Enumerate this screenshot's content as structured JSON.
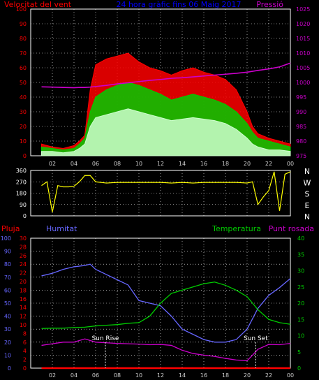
{
  "colors": {
    "background": "#000000",
    "wind": "#ff0000",
    "gust": "#00cc00",
    "wind_avg": "#ccffcc",
    "pressure": "#cc00cc",
    "direction": "#ffff00",
    "rain": "#ff0000",
    "humidity": "#6666ff",
    "temperature": "#00cc00",
    "dewpoint": "#cc00cc",
    "grid": "#ffffff",
    "sun_marker": "#ffffff"
  },
  "chart_data": [
    {
      "id": "wind",
      "type": "line",
      "title": "24 hora gràfic fins 06 Maig 2017",
      "left_axis_label": "Velocitat del vent",
      "right_axis_label": "Pressió",
      "x_ticks": [
        "02",
        "04",
        "06",
        "08",
        "10",
        "12",
        "14",
        "16",
        "18",
        "20",
        "22",
        "00"
      ],
      "y_left_ticks": [
        "0",
        "10",
        "20",
        "30",
        "40",
        "50",
        "60",
        "70",
        "80",
        "90",
        "100"
      ],
      "y_left_range": [
        0,
        100
      ],
      "y_right_ticks": [
        "975",
        "980",
        "985",
        "990",
        "995",
        "1000",
        "1005",
        "1010",
        "1015",
        "1020",
        "1025"
      ],
      "y_right_range": [
        975,
        1025
      ],
      "grid": true,
      "x": [
        1,
        2,
        3,
        4,
        4.5,
        5,
        5.5,
        6,
        7,
        8,
        9,
        10,
        11,
        12,
        13,
        14,
        15,
        16,
        17,
        18,
        19,
        20,
        20.5,
        21,
        22,
        23,
        24
      ],
      "series": [
        {
          "key": "wind",
          "color": "wind",
          "values": [
            8,
            6,
            5,
            7,
            10,
            14,
            45,
            62,
            66,
            68,
            70,
            64,
            60,
            58,
            55,
            58,
            60,
            57,
            55,
            52,
            45,
            30,
            20,
            15,
            12,
            10,
            8
          ]
        },
        {
          "key": "gust",
          "color": "gust",
          "values": [
            6,
            5,
            4,
            5,
            8,
            12,
            30,
            40,
            45,
            48,
            50,
            48,
            45,
            42,
            38,
            40,
            42,
            40,
            38,
            35,
            30,
            22,
            16,
            12,
            10,
            8,
            6
          ]
        },
        {
          "key": "wind_avg",
          "color": "wind_avg",
          "values": [
            3,
            3,
            2,
            3,
            5,
            8,
            20,
            26,
            28,
            30,
            32,
            30,
            28,
            26,
            24,
            25,
            26,
            25,
            24,
            22,
            18,
            12,
            8,
            6,
            4,
            4,
            3
          ]
        },
        {
          "key": "pressure",
          "axis": "right",
          "color": "pressure",
          "values": [
            998.5,
            998.4,
            998.3,
            998.2,
            998.3,
            998.3,
            998.4,
            998.6,
            999.0,
            999.5,
            999.9,
            1000.3,
            1000.7,
            1001.0,
            1001.4,
            1001.6,
            1001.9,
            1002.2,
            1002.5,
            1002.8,
            1003.1,
            1003.5,
            1003.8,
            1004.1,
            1004.6,
            1005.3,
            1006.6
          ]
        }
      ]
    },
    {
      "id": "direction",
      "type": "line",
      "y_left_ticks": [
        "0",
        "90",
        "180",
        "270",
        "360"
      ],
      "y_left_range": [
        0,
        360
      ],
      "compass": [
        "N",
        "W",
        "S",
        "E",
        "N"
      ],
      "grid": true,
      "x": [
        1,
        1.5,
        2,
        2.5,
        3,
        3.5,
        4,
        4.5,
        5,
        5.5,
        6,
        7,
        8,
        9,
        10,
        11,
        12,
        13,
        14,
        15,
        16,
        17,
        18,
        19,
        20,
        20.5,
        21,
        21.5,
        22,
        22.5,
        23,
        23.5,
        24
      ],
      "series": [
        {
          "key": "direction",
          "color": "direction",
          "values": [
            240,
            270,
            30,
            240,
            230,
            230,
            235,
            270,
            320,
            320,
            270,
            260,
            265,
            265,
            265,
            265,
            265,
            260,
            265,
            260,
            265,
            265,
            265,
            265,
            260,
            270,
            90,
            150,
            200,
            350,
            40,
            330,
            350
          ]
        }
      ]
    },
    {
      "id": "climate",
      "type": "line",
      "left_axis_label_1": "Pluja",
      "left_axis_label_2": "Humitat",
      "right_axis_label_1": "Temperatura",
      "right_axis_label_2": "Punt rosada",
      "x_ticks": [
        "02",
        "04",
        "06",
        "08",
        "10",
        "12",
        "14",
        "16",
        "18",
        "20",
        "22",
        "00"
      ],
      "y_humidity_ticks": [
        "0",
        "10",
        "20",
        "30",
        "40",
        "50",
        "60",
        "70",
        "80",
        "90",
        "100"
      ],
      "y_humidity_range": [
        0,
        100
      ],
      "y_rain_ticks": [
        "0",
        "2",
        "4",
        "6",
        "8",
        "10",
        "12",
        "14",
        "16",
        "18",
        "20",
        "22",
        "24",
        "26",
        "28",
        "30"
      ],
      "y_rain_range": [
        0,
        30
      ],
      "y_temp_ticks": [
        "0",
        "5",
        "10",
        "15",
        "20",
        "25",
        "30",
        "35",
        "40"
      ],
      "y_temp_range": [
        0,
        40
      ],
      "grid": true,
      "sun_rise_label": "Sun Rise",
      "sun_set_label": "Sun Set",
      "sun_rise_x": 6.9,
      "sun_set_x": 20.8,
      "x": [
        1,
        2,
        3,
        4,
        5,
        5.5,
        6,
        7,
        8,
        9,
        10,
        11,
        12,
        13,
        14,
        15,
        16,
        17,
        18,
        19,
        20,
        20.5,
        21,
        22,
        23,
        24
      ],
      "series": [
        {
          "key": "humidity",
          "axis": "humidity",
          "color": "humidity",
          "values": [
            71,
            73,
            76,
            78,
            79,
            80,
            76,
            72,
            68,
            64,
            52,
            50,
            48,
            40,
            30,
            26,
            22,
            20,
            20,
            22,
            30,
            38,
            46,
            56,
            62,
            69
          ]
        },
        {
          "key": "temperature",
          "axis": "temp",
          "color": "temperature",
          "values": [
            12.2,
            12.3,
            12.3,
            12.5,
            12.6,
            12.8,
            13.0,
            13.2,
            13.4,
            13.8,
            14.0,
            16,
            20,
            23,
            24,
            25,
            26,
            26.5,
            25.5,
            24,
            22,
            20,
            18,
            15,
            14,
            13.5
          ]
        },
        {
          "key": "dewpoint",
          "axis": "temp",
          "color": "dewpoint",
          "values": [
            7,
            7.5,
            8,
            8,
            9,
            8.5,
            8,
            7.8,
            7.6,
            7.5,
            7.4,
            7.2,
            7.3,
            7.0,
            5.5,
            4.5,
            4.0,
            3.6,
            3.0,
            2.5,
            2.3,
            4.0,
            5.8,
            7.3,
            7.2,
            7.6
          ]
        },
        {
          "key": "rain",
          "axis": "rain",
          "color": "rain",
          "values": [
            0,
            0,
            0,
            0,
            0,
            0,
            0,
            0,
            0,
            0,
            0,
            0,
            0,
            0,
            0,
            0,
            0,
            0,
            0,
            0,
            0,
            0,
            0,
            0,
            0,
            0
          ]
        }
      ]
    }
  ]
}
